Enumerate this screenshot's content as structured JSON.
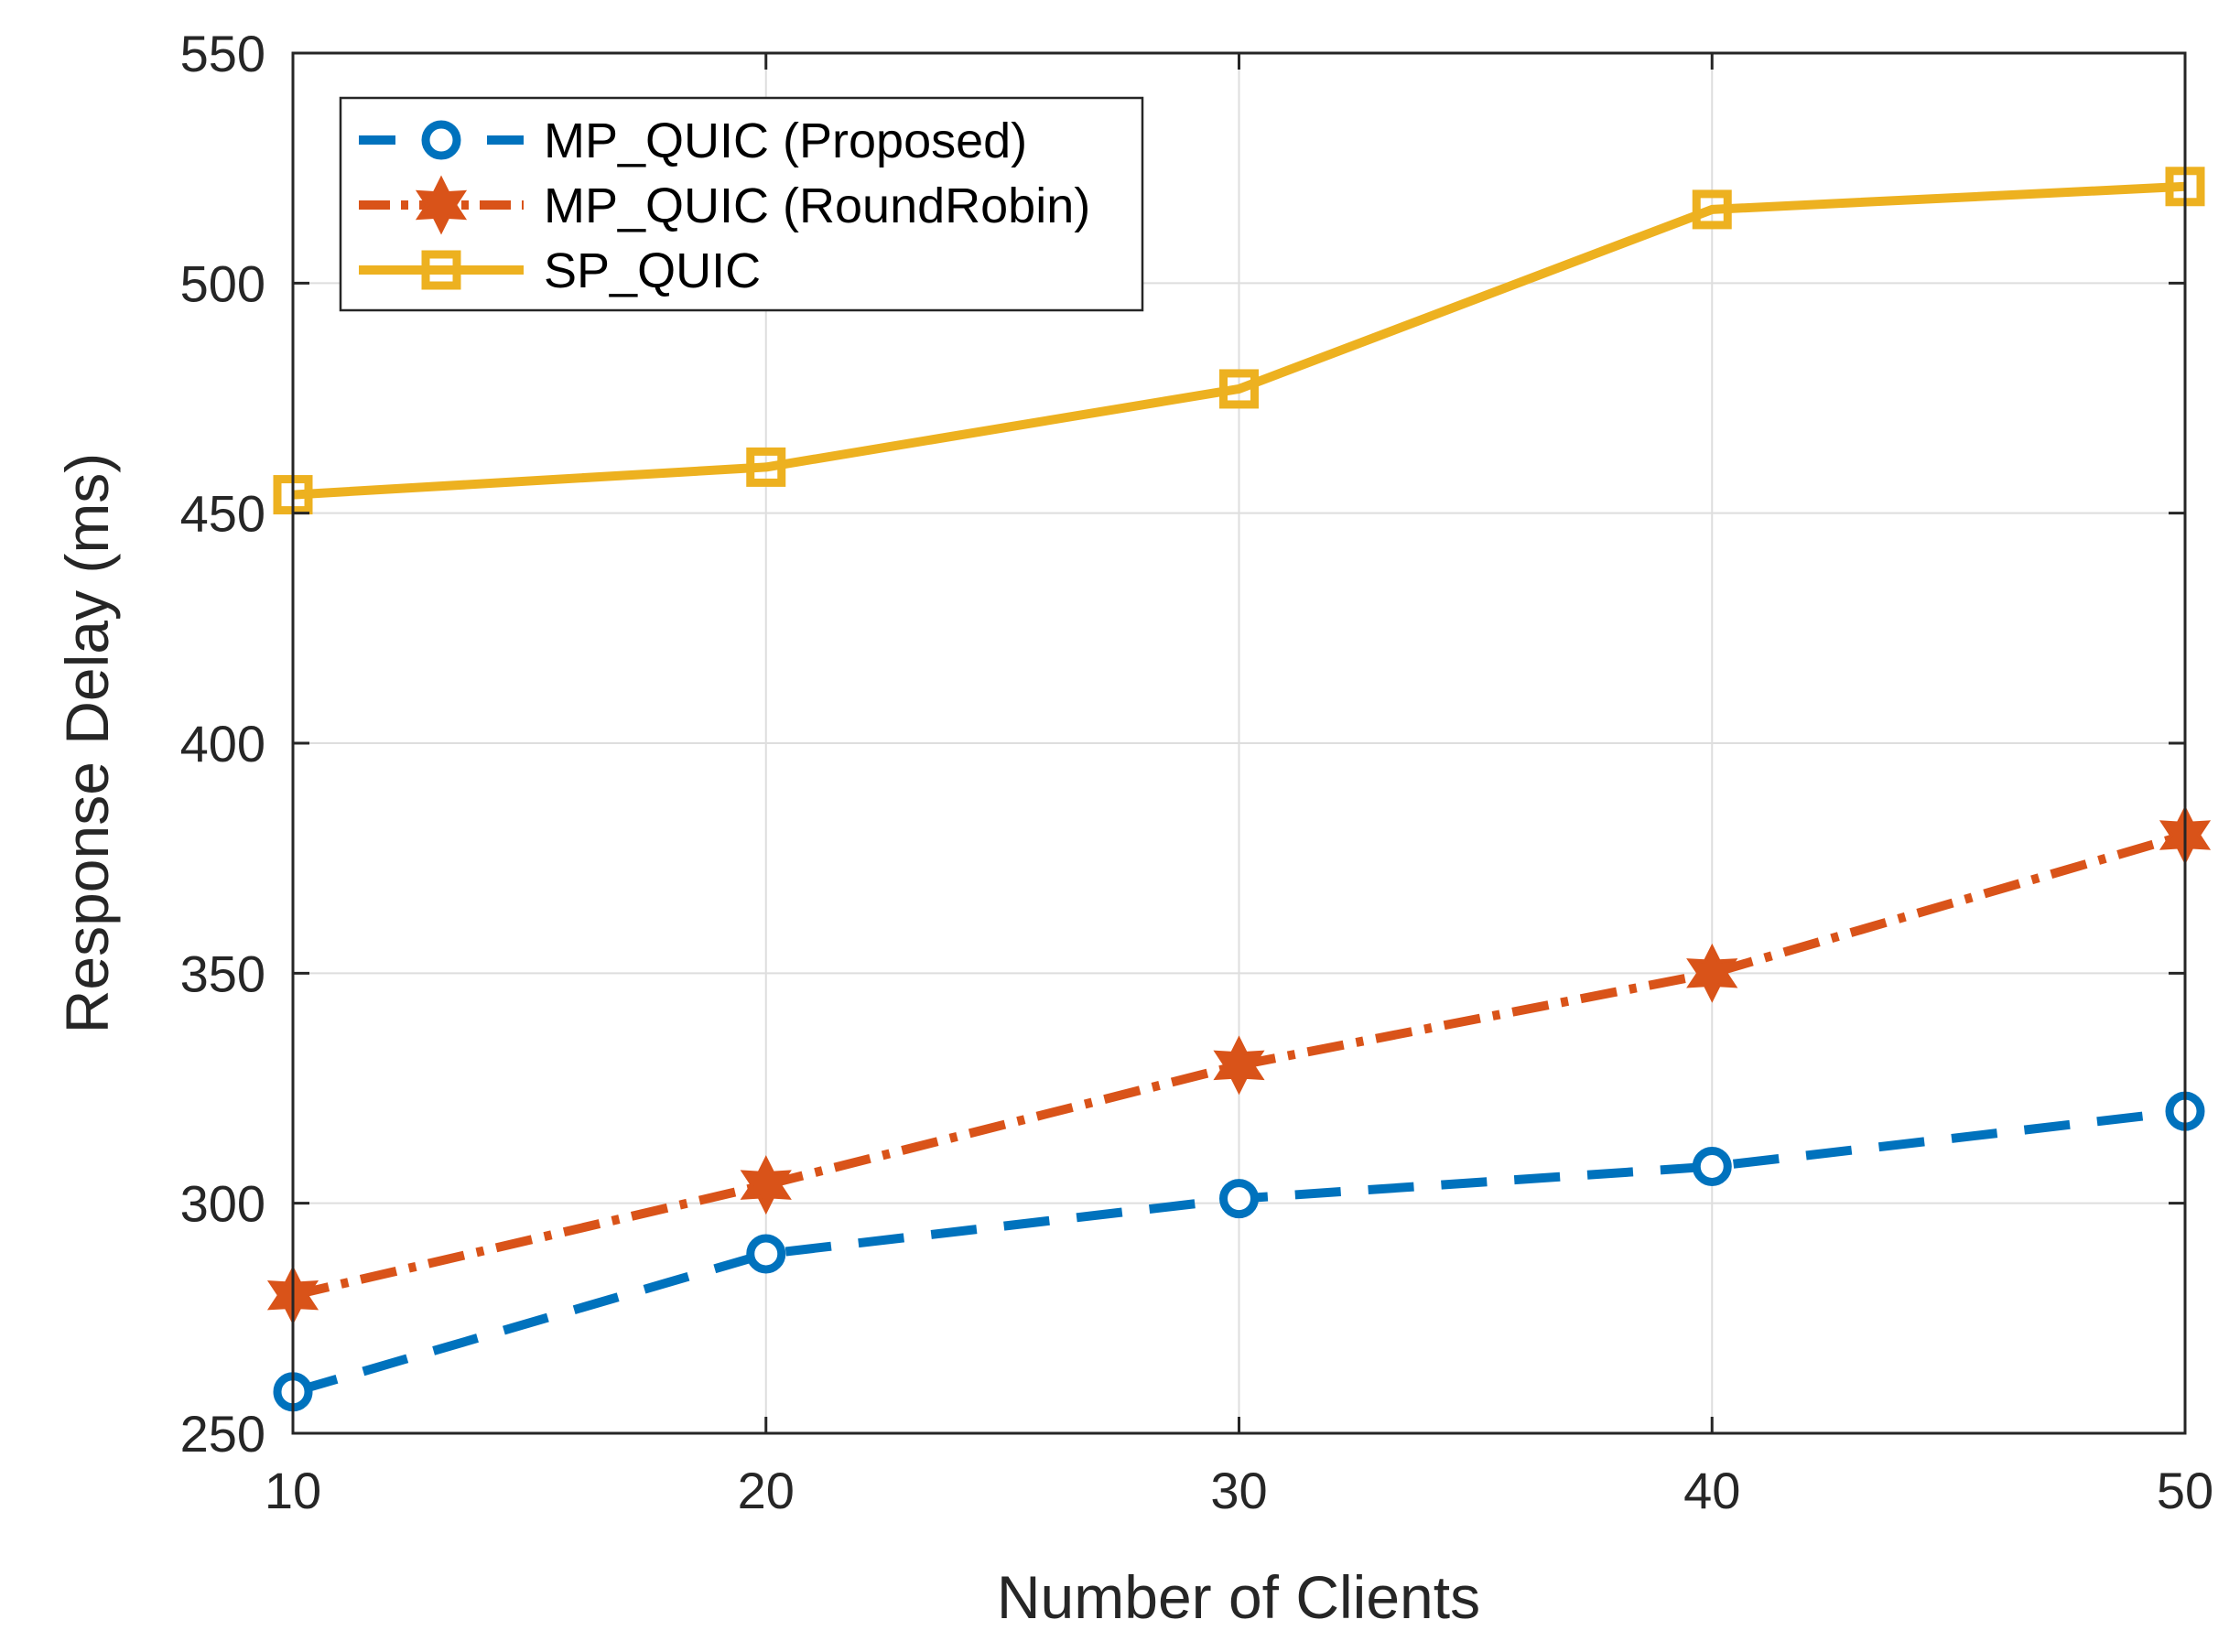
{
  "chart_data": {
    "type": "line",
    "title": "",
    "xlabel": "Number of Clients",
    "ylabel": "Response Delay (ms)",
    "x": [
      10,
      20,
      30,
      40,
      50
    ],
    "xlim": [
      10,
      50
    ],
    "ylim": [
      250,
      550
    ],
    "xticks": [
      10,
      20,
      30,
      40,
      50
    ],
    "yticks": [
      250,
      300,
      350,
      400,
      450,
      500,
      550
    ],
    "grid": true,
    "legend_position": "top-left",
    "series": [
      {
        "name": "MP_QUIC (Proposed)",
        "values": [
          259,
          289,
          301,
          308,
          320
        ],
        "color": "#0072BD",
        "line_style": "dashed",
        "marker": "circle"
      },
      {
        "name": "MP_QUIC (RoundRobin)",
        "values": [
          280,
          304,
          330,
          350,
          380
        ],
        "color": "#D95319",
        "line_style": "dash-dot",
        "marker": "hexagram"
      },
      {
        "name": "SP_QUIC",
        "values": [
          454,
          460,
          477,
          516,
          521
        ],
        "color": "#EDB120",
        "line_style": "solid",
        "marker": "square"
      }
    ]
  }
}
